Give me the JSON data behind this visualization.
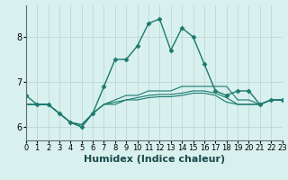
{
  "xlabel": "Humidex (Indice chaleur)",
  "background_color": "#d8f0ee",
  "grid_color": "#c0d8d4",
  "line_color": "#1a7a6e",
  "x_values": [
    0,
    1,
    2,
    3,
    4,
    5,
    6,
    7,
    8,
    9,
    10,
    11,
    12,
    13,
    14,
    15,
    16,
    17,
    18,
    19,
    20,
    21,
    22,
    23
  ],
  "series": [
    [
      6.7,
      6.5,
      6.5,
      6.3,
      6.1,
      6.0,
      6.3,
      6.9,
      7.5,
      7.5,
      7.8,
      8.3,
      8.4,
      7.7,
      8.2,
      8.0,
      7.4,
      6.8,
      6.7,
      6.8,
      6.8,
      6.5,
      6.6,
      6.6
    ],
    [
      6.5,
      6.5,
      6.5,
      6.3,
      6.1,
      6.0,
      6.3,
      6.5,
      6.6,
      6.7,
      6.7,
      6.8,
      6.8,
      6.8,
      6.9,
      6.9,
      6.9,
      6.9,
      6.9,
      6.6,
      6.6,
      6.5,
      6.6,
      6.6
    ],
    [
      6.5,
      6.5,
      6.5,
      6.3,
      6.1,
      6.05,
      6.3,
      6.5,
      6.55,
      6.6,
      6.65,
      6.7,
      6.72,
      6.72,
      6.75,
      6.8,
      6.8,
      6.75,
      6.65,
      6.5,
      6.5,
      6.5,
      6.6,
      6.6
    ],
    [
      6.5,
      6.5,
      6.5,
      6.3,
      6.1,
      6.05,
      6.3,
      6.5,
      6.5,
      6.6,
      6.6,
      6.65,
      6.67,
      6.67,
      6.7,
      6.75,
      6.75,
      6.7,
      6.55,
      6.5,
      6.5,
      6.5,
      6.6,
      6.6
    ]
  ],
  "ylim": [
    5.7,
    8.7
  ],
  "yticks": [
    6,
    7,
    8
  ],
  "xlim": [
    0,
    23
  ],
  "xlabel_fontsize": 8,
  "tick_fontsize": 7
}
